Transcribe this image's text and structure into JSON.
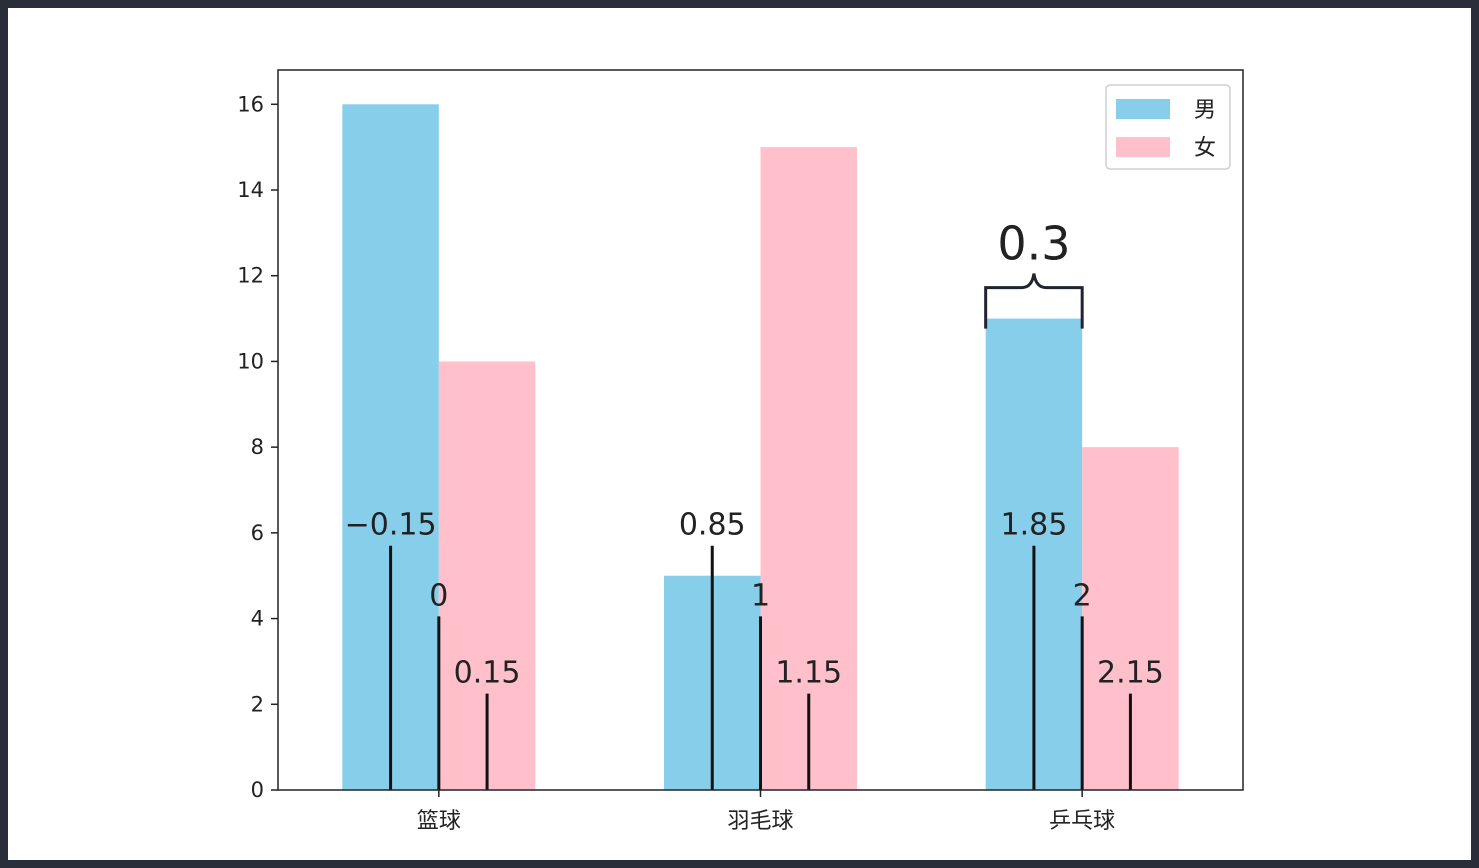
{
  "chart_data": {
    "type": "bar",
    "categories": [
      "篮球",
      "羽毛球",
      "乒乓球"
    ],
    "series": [
      {
        "name": "男",
        "color": "#87CEEB",
        "values": [
          16,
          5,
          11
        ]
      },
      {
        "name": "女",
        "color": "#FFC0CB",
        "values": [
          10,
          15,
          8
        ]
      }
    ],
    "ylim": [
      0,
      16.8
    ],
    "yticks": [
      0,
      2,
      4,
      6,
      8,
      10,
      12,
      14,
      16
    ],
    "legend_placement": "top-right",
    "grid": false,
    "annotations": {
      "vlines": [
        {
          "x": -0.15,
          "label": "−0.15",
          "height": 5.7
        },
        {
          "x": 0,
          "label": "0",
          "height": 4.05
        },
        {
          "x": 0.15,
          "label": "0.15",
          "height": 2.25
        },
        {
          "x": 0.85,
          "label": "0.85",
          "height": 5.7
        },
        {
          "x": 1,
          "label": "1",
          "height": 4.05
        },
        {
          "x": 1.15,
          "label": "1.15",
          "height": 2.25
        },
        {
          "x": 1.85,
          "label": "1.85",
          "height": 5.7
        },
        {
          "x": 2,
          "label": "2",
          "height": 4.05
        },
        {
          "x": 2.15,
          "label": "2.15",
          "height": 2.25
        }
      ],
      "brace": {
        "x_start": 1.7,
        "x_end": 2.0,
        "y": 11,
        "label": "0.3"
      }
    }
  }
}
